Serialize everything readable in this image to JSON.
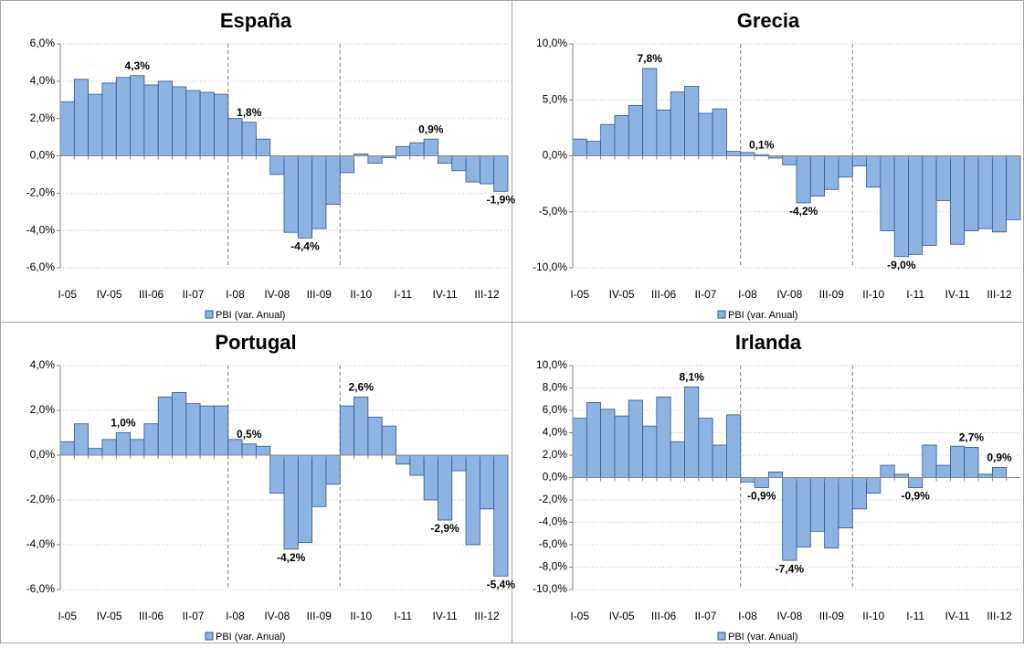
{
  "chart_data": [
    {
      "type": "bar",
      "title": "España",
      "categories": [
        "I-05",
        null,
        null,
        "IV-05",
        null,
        null,
        "III-06",
        null,
        null,
        "II-07",
        null,
        null,
        "I-08",
        null,
        null,
        "IV-08",
        null,
        null,
        "III-09",
        null,
        null,
        "II-10",
        null,
        null,
        "I-11",
        null,
        null,
        "IV-11",
        null,
        null,
        "III-12",
        null
      ],
      "series": [
        {
          "name": "PBI (var. Anual)",
          "color": "#8db3e2",
          "values": [
            2.9,
            4.1,
            3.3,
            3.9,
            4.2,
            4.3,
            3.8,
            4.0,
            3.7,
            3.5,
            3.4,
            3.3,
            2.0,
            1.8,
            0.9,
            -1.0,
            -4.1,
            -4.4,
            -3.9,
            -2.6,
            -0.9,
            0.1,
            -0.4,
            -0.1,
            0.5,
            0.7,
            0.9,
            -0.4,
            -0.8,
            -1.4,
            -1.5,
            -1.9
          ],
          "value_labels": [
            null,
            null,
            null,
            null,
            null,
            "4,3%",
            null,
            null,
            null,
            null,
            null,
            null,
            null,
            "1,8%",
            null,
            null,
            null,
            "-4,4%",
            null,
            null,
            null,
            null,
            null,
            null,
            null,
            null,
            "0,9%",
            null,
            null,
            null,
            null,
            "-1,9%"
          ]
        }
      ],
      "ylim": [
        -6,
        6
      ],
      "yticks": [
        {
          "value": -6,
          "label": "-6,0%"
        },
        {
          "value": -4,
          "label": "-4,0%"
        },
        {
          "value": -2,
          "label": "-2,0%"
        },
        {
          "value": 0,
          "label": "0,0%"
        },
        {
          "value": 2,
          "label": "2,0%"
        },
        {
          "value": 4,
          "label": "4,0%"
        },
        {
          "value": 6,
          "label": "6,0%"
        }
      ],
      "grid": true
    },
    {
      "type": "bar",
      "title": "Grecia",
      "categories": [
        "I-05",
        null,
        null,
        "IV-05",
        null,
        null,
        "III-06",
        null,
        null,
        "II-07",
        null,
        null,
        "I-08",
        null,
        null,
        "IV-08",
        null,
        null,
        "III-09",
        null,
        null,
        "II-10",
        null,
        null,
        "I-11",
        null,
        null,
        "IV-11",
        null,
        null,
        "III-12",
        null
      ],
      "series": [
        {
          "name": "PBI (var. Anual)",
          "color": "#8db3e2",
          "values": [
            1.5,
            1.3,
            2.8,
            3.6,
            4.5,
            7.8,
            4.1,
            5.7,
            6.2,
            3.8,
            4.2,
            0.4,
            0.3,
            0.1,
            -0.2,
            -0.8,
            -4.2,
            -3.6,
            -3.0,
            -1.9,
            -0.9,
            -2.8,
            -6.7,
            -9.0,
            -8.8,
            -8.0,
            -4.0,
            -7.9,
            -6.7,
            -6.5,
            -6.8,
            -5.7
          ],
          "value_labels": [
            null,
            null,
            null,
            null,
            null,
            "7,8%",
            null,
            null,
            null,
            null,
            null,
            null,
            null,
            "0,1%",
            null,
            null,
            "-4,2%",
            null,
            null,
            null,
            null,
            null,
            null,
            "-9,0%",
            null,
            null,
            null,
            null,
            null,
            null,
            null,
            null
          ]
        }
      ],
      "ylim": [
        -10,
        10
      ],
      "yticks": [
        {
          "value": -10,
          "label": "-10,0%"
        },
        {
          "value": -5,
          "label": "-5,0%"
        },
        {
          "value": 0,
          "label": "0,0%"
        },
        {
          "value": 5,
          "label": "5,0%"
        },
        {
          "value": 10,
          "label": "10,0%"
        }
      ],
      "grid": true
    },
    {
      "type": "bar",
      "title": "Portugal",
      "categories": [
        "I-05",
        null,
        null,
        "IV-05",
        null,
        null,
        "III-06",
        null,
        null,
        "II-07",
        null,
        null,
        "I-08",
        null,
        null,
        "IV-08",
        null,
        null,
        "III-09",
        null,
        null,
        "II-10",
        null,
        null,
        "I-11",
        null,
        null,
        "IV-11",
        null,
        null,
        "III-12",
        null
      ],
      "series": [
        {
          "name": "PBI (var. Anual)",
          "color": "#8db3e2",
          "values": [
            0.6,
            1.4,
            0.3,
            0.7,
            1.0,
            0.7,
            1.4,
            2.6,
            2.8,
            2.3,
            2.2,
            2.2,
            0.7,
            0.5,
            0.4,
            -1.7,
            -4.2,
            -3.9,
            -2.3,
            -1.3,
            2.2,
            2.6,
            1.7,
            1.3,
            -0.4,
            -0.9,
            -2.0,
            -2.9,
            -0.7,
            -4.0,
            -2.4,
            -5.4
          ],
          "value_labels": [
            null,
            null,
            null,
            null,
            "1,0%",
            null,
            null,
            null,
            null,
            null,
            null,
            null,
            null,
            "0,5%",
            null,
            null,
            "-4,2%",
            null,
            null,
            null,
            null,
            "2,6%",
            null,
            null,
            null,
            null,
            null,
            "-2,9%",
            null,
            null,
            null,
            "-5,4%"
          ]
        }
      ],
      "ylim": [
        -6,
        4
      ],
      "yticks": [
        {
          "value": -6,
          "label": "-6,0%"
        },
        {
          "value": -4,
          "label": "-4,0%"
        },
        {
          "value": -2,
          "label": "-2,0%"
        },
        {
          "value": 0,
          "label": "0,0%"
        },
        {
          "value": 2,
          "label": "2,0%"
        },
        {
          "value": 4,
          "label": "4,0%"
        }
      ],
      "grid": true
    },
    {
      "type": "bar",
      "title": "Irlanda",
      "categories": [
        "I-05",
        null,
        null,
        "IV-05",
        null,
        null,
        "III-06",
        null,
        null,
        "II-07",
        null,
        null,
        "I-08",
        null,
        null,
        "IV-08",
        null,
        null,
        "III-09",
        null,
        null,
        "II-10",
        null,
        null,
        "I-11",
        null,
        null,
        "IV-11",
        null,
        null,
        "III-12",
        null
      ],
      "series": [
        {
          "name": "PBI (var. Anual)",
          "color": "#8db3e2",
          "values": [
            5.3,
            6.7,
            6.1,
            5.5,
            6.9,
            4.6,
            7.2,
            3.2,
            8.1,
            5.3,
            2.9,
            5.6,
            -0.4,
            -0.9,
            0.5,
            -7.4,
            -6.2,
            -4.8,
            -6.3,
            -4.5,
            -2.8,
            -1.4,
            1.1,
            0.3,
            -0.9,
            2.9,
            1.1,
            2.8,
            2.7,
            0.3,
            0.9,
            null
          ],
          "value_labels": [
            null,
            null,
            null,
            null,
            null,
            null,
            null,
            null,
            "8,1%",
            null,
            null,
            null,
            null,
            "-0,9%",
            null,
            "-7,4%",
            null,
            null,
            null,
            null,
            null,
            null,
            null,
            null,
            "-0,9%",
            null,
            null,
            null,
            "2,7%",
            null,
            "0,9%",
            null
          ]
        }
      ],
      "ylim": [
        -10,
        10
      ],
      "yticks": [
        {
          "value": -10,
          "label": "-10,0%"
        },
        {
          "value": -8,
          "label": "-8,0%"
        },
        {
          "value": -6,
          "label": "-6,0%"
        },
        {
          "value": -4,
          "label": "-4,0%"
        },
        {
          "value": -2,
          "label": "-2,0%"
        },
        {
          "value": 0,
          "label": "0,0%"
        },
        {
          "value": 2,
          "label": "2,0%"
        },
        {
          "value": 4,
          "label": "4,0%"
        },
        {
          "value": 6,
          "label": "6,0%"
        },
        {
          "value": 8,
          "label": "8,0%"
        },
        {
          "value": 10,
          "label": "10,0%"
        }
      ],
      "grid": true
    }
  ]
}
